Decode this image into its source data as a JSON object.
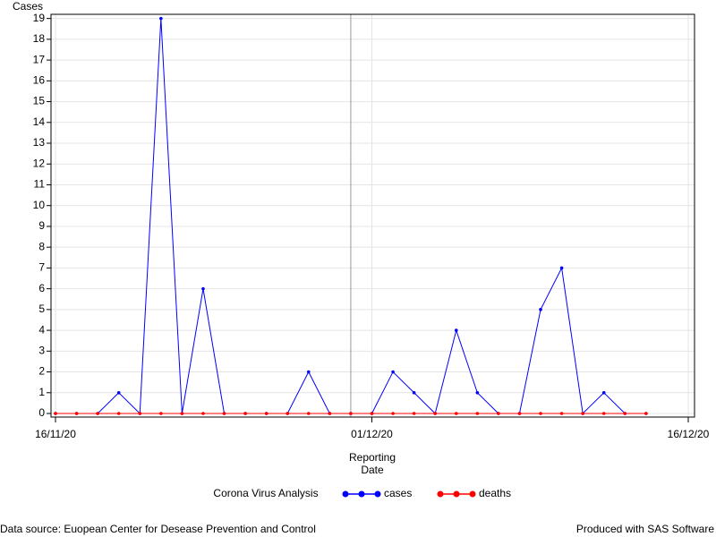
{
  "chart_data": {
    "type": "line",
    "y_label": "Cases",
    "x_label": [
      "Reporting",
      "Date"
    ],
    "x": [
      "16/11/20",
      "17/11/20",
      "18/11/20",
      "19/11/20",
      "20/11/20",
      "21/11/20",
      "22/11/20",
      "23/11/20",
      "24/11/20",
      "25/11/20",
      "26/11/20",
      "27/11/20",
      "28/11/20",
      "29/11/20",
      "30/11/20",
      "01/12/20",
      "02/12/20",
      "03/12/20",
      "04/12/20",
      "05/12/20",
      "06/12/20",
      "07/12/20",
      "08/12/20",
      "09/12/20",
      "10/12/20",
      "11/12/20",
      "12/12/20",
      "13/12/20",
      "14/12/20"
    ],
    "series": [
      {
        "name": "cases",
        "color": "#0000ff",
        "values": [
          0,
          0,
          0,
          1,
          0,
          19,
          0,
          6,
          0,
          0,
          0,
          0,
          2,
          0,
          0,
          0,
          2,
          1,
          0,
          4,
          1,
          0,
          0,
          5,
          7,
          0,
          1,
          0,
          0
        ]
      },
      {
        "name": "deaths",
        "color": "#ff0000",
        "values": [
          0,
          0,
          0,
          0,
          0,
          0,
          0,
          0,
          0,
          0,
          0,
          0,
          0,
          0,
          0,
          0,
          0,
          0,
          0,
          0,
          0,
          0,
          0,
          0,
          0,
          0,
          0,
          0,
          0
        ]
      }
    ],
    "xlim": [
      "16/11/20",
      "16/12/20"
    ],
    "xticks": [
      "16/11/20",
      "01/12/20",
      "16/12/20"
    ],
    "ylim": [
      0,
      19.2
    ],
    "yticks": [
      0,
      1,
      2,
      3,
      4,
      5,
      6,
      7,
      8,
      9,
      10,
      11,
      12,
      13,
      14,
      15,
      16,
      17,
      18,
      19
    ],
    "grid": true,
    "reference_line": "30/11/20",
    "legend_title": "Corona Virus Analysis",
    "legend_position": "bottom",
    "footnote_left": "Data source: Euopean Center for Desease Prevention and Control",
    "footnote_right": "Produced with SAS Software"
  }
}
